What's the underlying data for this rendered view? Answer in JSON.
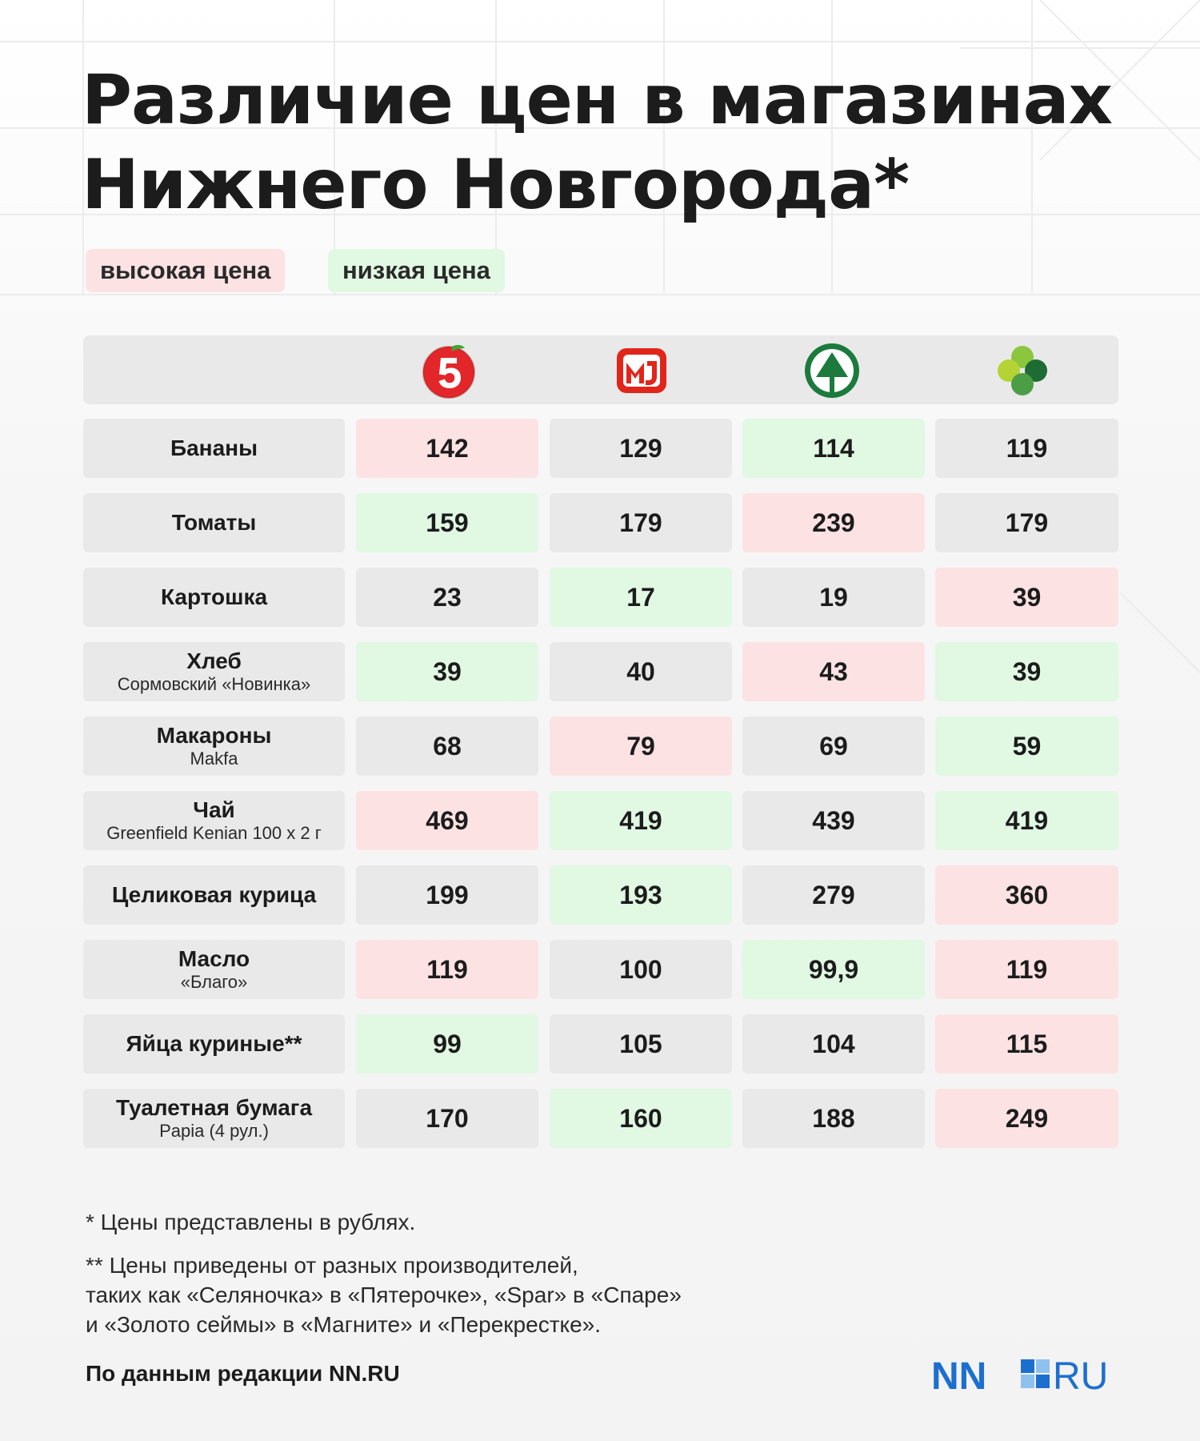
{
  "title": {
    "line1": "Различие цен в магазинах",
    "line2": "Нижнего Новгорода*"
  },
  "legend": {
    "high": "высокая цена",
    "low": "низкая цена"
  },
  "colors": {
    "high": "#fde2e4",
    "low": "#e1f8e3",
    "neutral": "#e9e9e9",
    "pyaterochka_red": "#e3262a",
    "magnit_red": "#e1251b",
    "spar_green": "#1b7a3c",
    "perekrestok_green": "#5aa84f",
    "nn_blue": "#1d6fcf"
  },
  "stores": [
    {
      "icon": "pyaterochka-logo-icon"
    },
    {
      "icon": "magnit-logo-icon"
    },
    {
      "icon": "spar-logo-icon"
    },
    {
      "icon": "perekrestok-logo-icon"
    }
  ],
  "table": {
    "rows": [
      {
        "name": "Бананы",
        "sub": "",
        "prices": [
          "142",
          "129",
          "114",
          "119"
        ],
        "levels": [
          "high",
          "",
          "low",
          ""
        ]
      },
      {
        "name": "Томаты",
        "sub": "",
        "prices": [
          "159",
          "179",
          "239",
          "179"
        ],
        "levels": [
          "low",
          "",
          "high",
          ""
        ]
      },
      {
        "name": "Картошка",
        "sub": "",
        "prices": [
          "23",
          "17",
          "19",
          "39"
        ],
        "levels": [
          "",
          "low",
          "",
          "high"
        ]
      },
      {
        "name": "Хлеб",
        "sub": "Сормовский «Новинка»",
        "prices": [
          "39",
          "40",
          "43",
          "39"
        ],
        "levels": [
          "low",
          "",
          "high",
          "low"
        ]
      },
      {
        "name": "Макароны",
        "sub": "Makfa",
        "prices": [
          "68",
          "79",
          "69",
          "59"
        ],
        "levels": [
          "",
          "high",
          "",
          "low"
        ]
      },
      {
        "name": "Чай",
        "sub": "Greenfield Kenian 100 х 2 г",
        "prices": [
          "469",
          "419",
          "439",
          "419"
        ],
        "levels": [
          "high",
          "low",
          "",
          "low"
        ]
      },
      {
        "name": "Целиковая курица",
        "sub": "",
        "prices": [
          "199",
          "193",
          "279",
          "360"
        ],
        "levels": [
          "",
          "low",
          "",
          "high"
        ]
      },
      {
        "name": "Масло",
        "sub": "«Благо»",
        "prices": [
          "119",
          "100",
          "99,9",
          "119"
        ],
        "levels": [
          "high",
          "",
          "low",
          "high"
        ]
      },
      {
        "name": "Яйца куриные**",
        "sub": "",
        "prices": [
          "99",
          "105",
          "104",
          "115"
        ],
        "levels": [
          "low",
          "",
          "",
          "high"
        ]
      },
      {
        "name": "Туалетная бумага",
        "sub": "Papia (4 рул.)",
        "prices": [
          "170",
          "160",
          "188",
          "249"
        ],
        "levels": [
          "",
          "low",
          "",
          "high"
        ]
      }
    ]
  },
  "notes": {
    "note1": "* Цены представлены в рублях.",
    "note2_line1": "** Цены приведены от разных производителей,",
    "note2_line2": "таких как «Селяночка» в «Пятерочке», «Spar» в «Спаре»",
    "note2_line3": "и «Золото сеймы» в «Магните» и «Перекрестке».",
    "source": "По данным редакции NN.RU"
  },
  "brand": {
    "nn": "NN",
    "ru": "RU"
  }
}
